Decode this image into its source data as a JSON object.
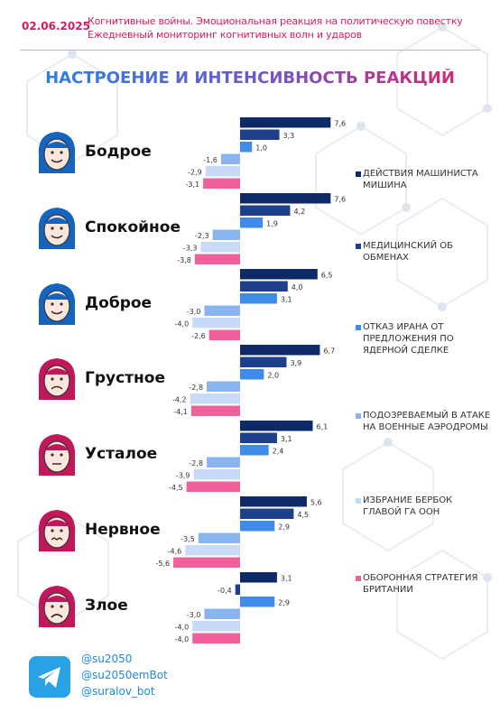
{
  "header": {
    "date": "02.06.2025",
    "line1": "Когнитивные войны. Эмоциональная реакция на политическую повестку",
    "line2": "Ежедневный мониторинг когнитивных волн и ударов"
  },
  "colors": {
    "accent": "#d81b60",
    "series": [
      "#0d2a66",
      "#1e3f8a",
      "#3f8be8",
      "#89b4ee",
      "#c7dbf7",
      "#f0609a"
    ]
  },
  "chart_data": {
    "type": "bar",
    "orientation": "horizontal",
    "title": "НАСТРОЕНИЕ И ИНТЕНСИВНОСТЬ РЕАКЦИЙ",
    "categories": [
      "Бодрое",
      "Спокойное",
      "Доброе",
      "Грустное",
      "Усталое",
      "Нервное",
      "Злое"
    ],
    "series": [
      {
        "name": "ДЕЙСТВИЯ МАШИНИСТА МИШИНА",
        "values": [
          7.6,
          7.6,
          6.5,
          6.7,
          6.1,
          5.6,
          3.1
        ]
      },
      {
        "name": "МЕДИЦИНСКИЙ ОБ ОБМЕНАХ",
        "values": [
          3.3,
          4.2,
          4.0,
          3.9,
          3.1,
          4.5,
          -0.4
        ]
      },
      {
        "name": "ОТКАЗ ИРАНА ОТ ПРЕДЛОЖЕНИЯ ПО ЯДЕРНОЙ СДЕЛКЕ",
        "values": [
          1.0,
          1.9,
          3.1,
          2.0,
          2.4,
          2.9,
          2.9
        ]
      },
      {
        "name": "ПОДОЗРЕВАЕМЫЙ В АТАКЕ НА ВОЕННЫЕ АЭРОДРОМЫ",
        "values": [
          -1.6,
          -2.3,
          -3.0,
          -2.8,
          -2.8,
          -3.5,
          -3.0
        ]
      },
      {
        "name": "ИЗБРАНИЕ БЕРБОК ГЛАВОЙ ГА ООН",
        "values": [
          -2.9,
          -3.3,
          -4.0,
          -4.2,
          -3.9,
          -4.6,
          -4.0
        ]
      },
      {
        "name": "ОБОРОННАЯ СТРАТЕГИЯ БРИТАНИИ",
        "values": [
          -3.1,
          -3.8,
          -2.6,
          -4.1,
          -4.5,
          -5.6,
          -4.0
        ]
      }
    ],
    "value_labels": [
      [
        "7,6",
        "3,3",
        "1,0",
        "-1,6",
        "-2,9",
        "-3,1"
      ],
      [
        "7,6",
        "4,2",
        "1,9",
        "-2,3",
        "-3,3",
        "-3,8"
      ],
      [
        "6,5",
        "4,0",
        "3,1",
        "-3,0",
        "-4,0",
        "-2,6"
      ],
      [
        "6,7",
        "3,9",
        "2,0",
        "-2,8",
        "-4,2",
        "-4,1"
      ],
      [
        "6,1",
        "3,1",
        "2,4",
        "-2,8",
        "-3,9",
        "-4,5"
      ],
      [
        "5,6",
        "4,5",
        "2,9",
        "-3,5",
        "-4,6",
        "-5,6"
      ],
      [
        "3,1",
        "-0,4",
        "2,9",
        "-3,0",
        "-4,0",
        "-4,0"
      ]
    ],
    "legend_position": "right",
    "grid": false
  },
  "avatars": [
    {
      "icon": "smiling-face-icon",
      "color": "#1565c0"
    },
    {
      "icon": "calm-face-icon",
      "color": "#1565c0"
    },
    {
      "icon": "kind-face-icon",
      "color": "#1565c0"
    },
    {
      "icon": "sad-face-icon",
      "color": "#c2185b"
    },
    {
      "icon": "tired-face-icon",
      "color": "#c2185b"
    },
    {
      "icon": "nervous-face-icon",
      "color": "#c2185b"
    },
    {
      "icon": "angry-face-icon",
      "color": "#c2185b"
    }
  ],
  "footer": {
    "icon": "telegram-icon",
    "links": [
      "@su2050",
      "@su2050emBot",
      "@suralov_bot"
    ]
  }
}
